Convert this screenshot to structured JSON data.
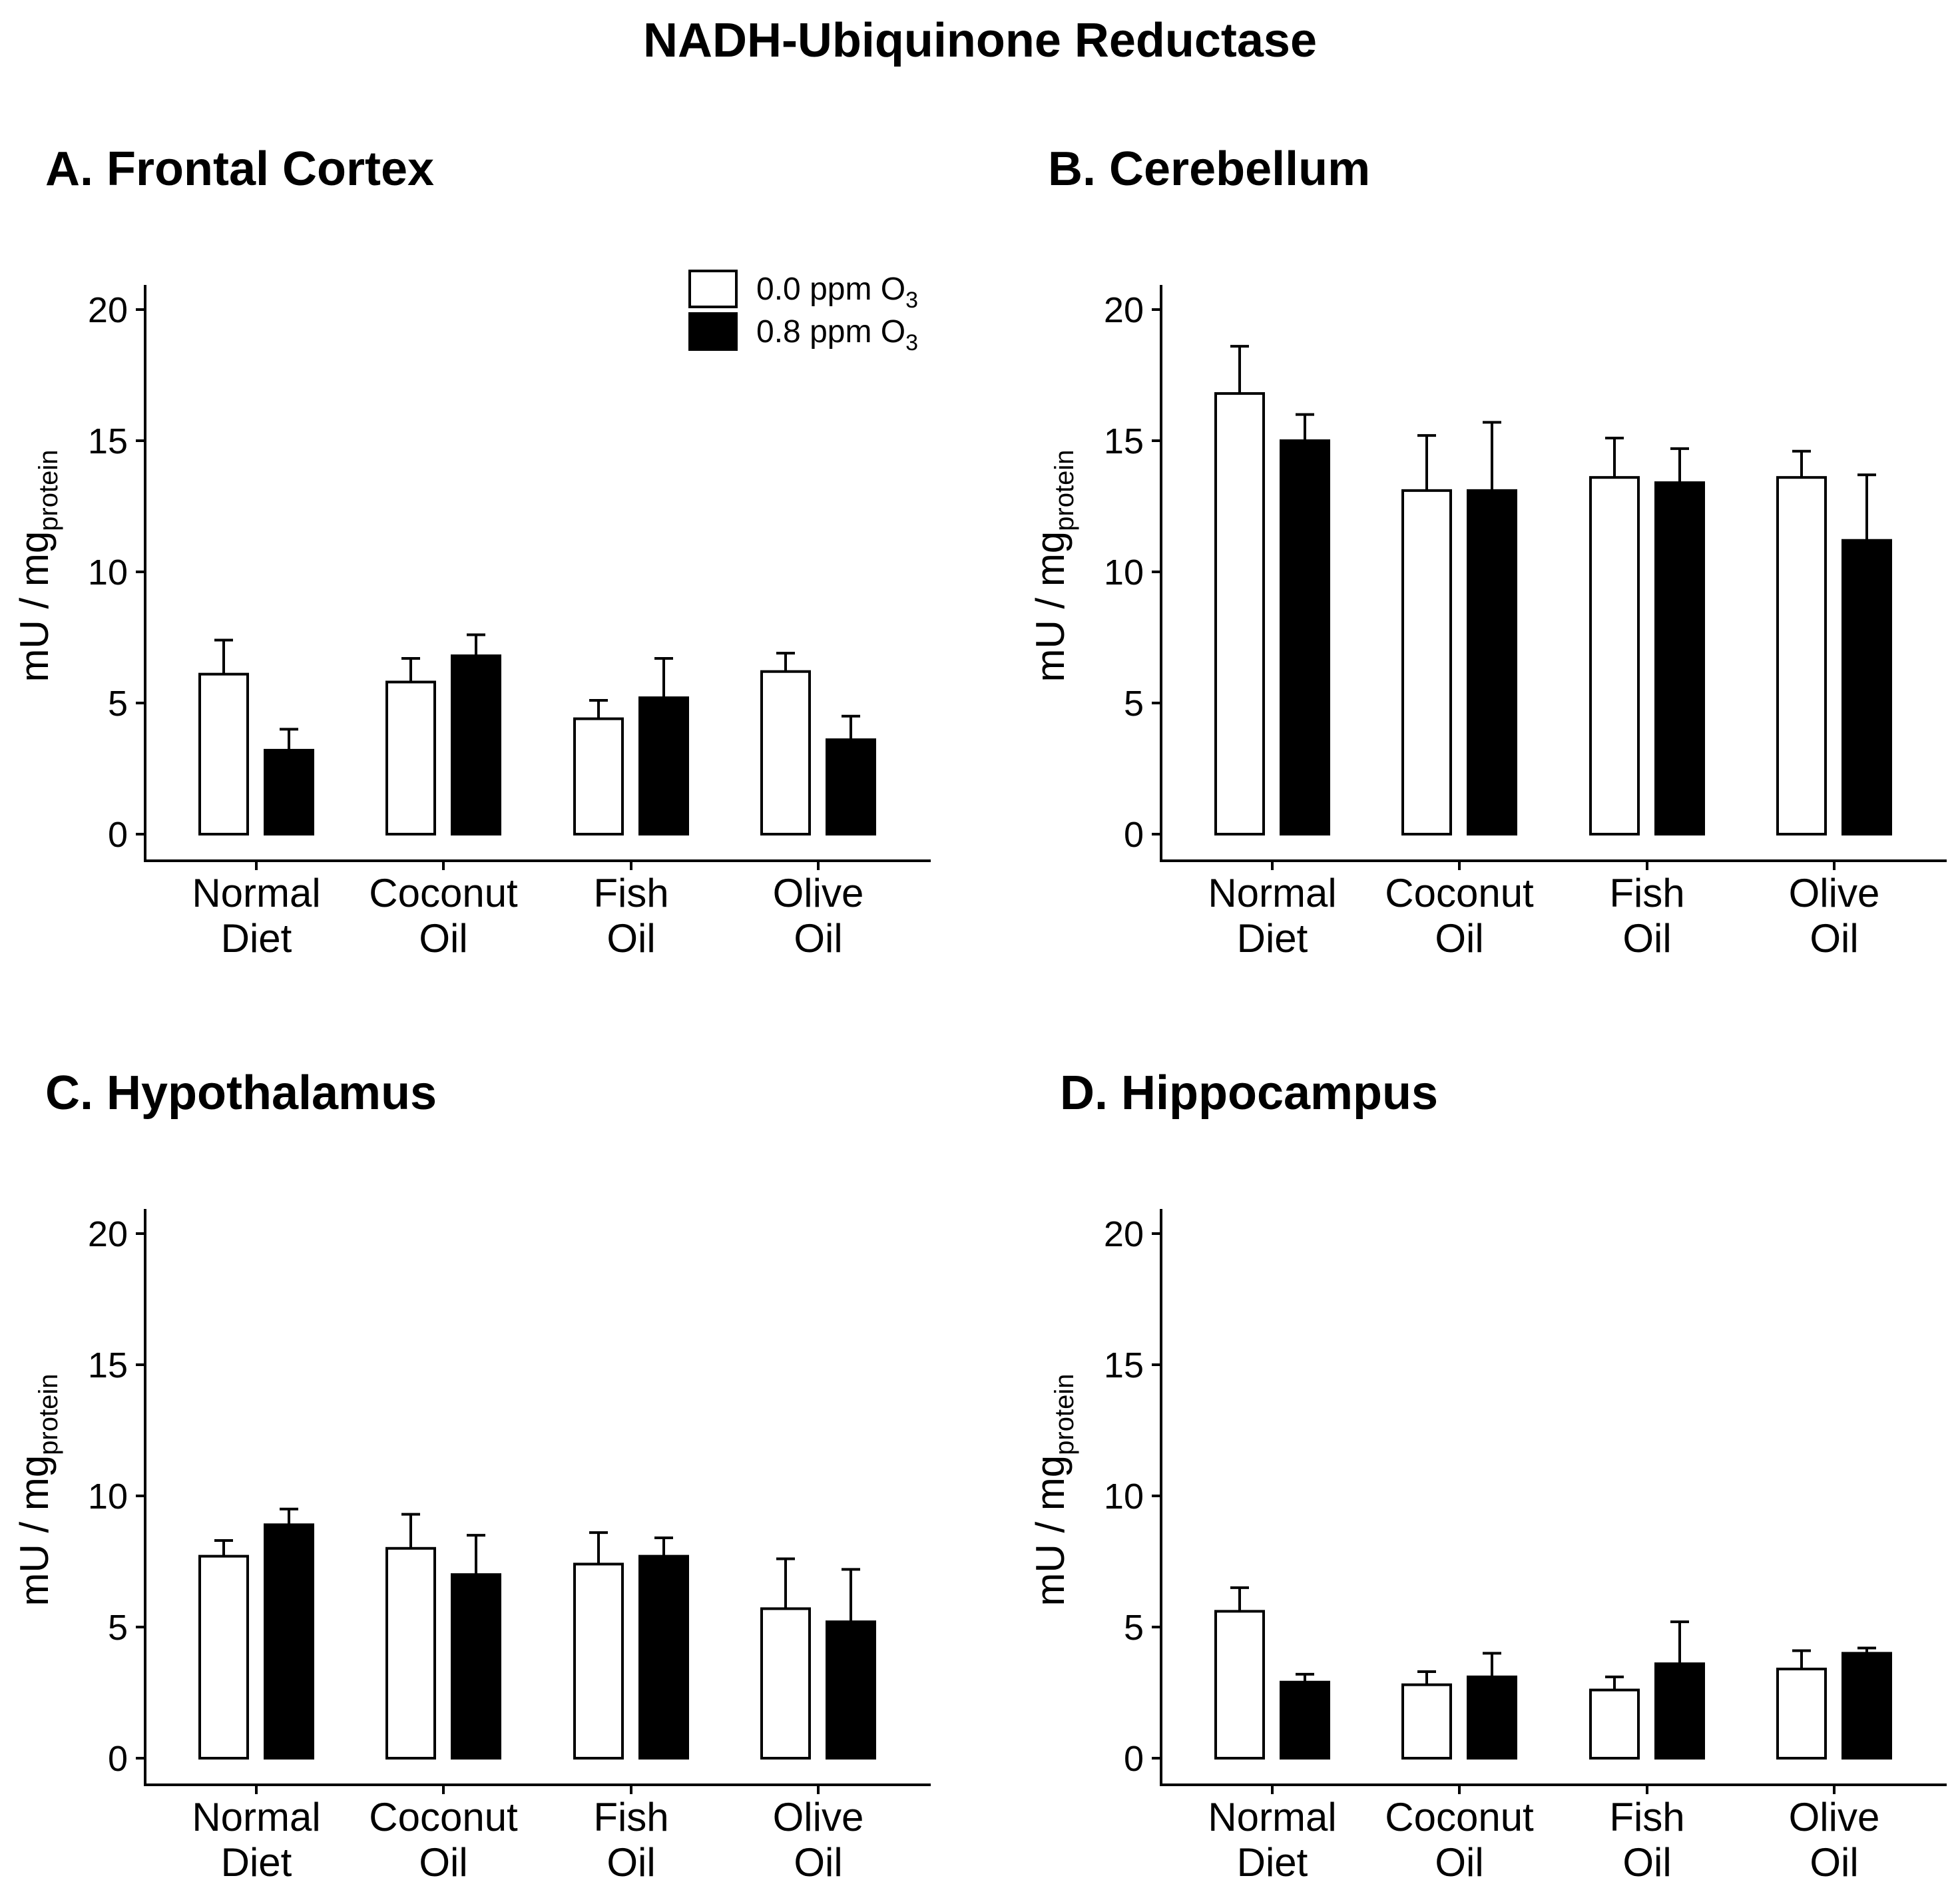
{
  "title": "NADH-Ubiquinone Reductase",
  "legend": {
    "items": [
      {
        "name": "0.0 ppm O",
        "sub": "3",
        "fill": "#ffffff"
      },
      {
        "name": "0.8 ppm O",
        "sub": "3",
        "fill": "#000000"
      }
    ]
  },
  "colors": {
    "control": "#ffffff",
    "ozone": "#000000",
    "stroke": "#000000"
  },
  "chart_data": [
    {
      "type": "bar",
      "title": "A. Frontal Cortex",
      "ylabel": "mU / mg",
      "ylabel_sub": "protein",
      "ylim": [
        0,
        20
      ],
      "yticks": [
        0,
        5,
        10,
        15,
        20
      ],
      "categories": [
        [
          "Normal",
          "Diet"
        ],
        [
          "Coconut",
          "Oil"
        ],
        [
          "Fish",
          "Oil"
        ],
        [
          "Olive",
          "Oil"
        ]
      ],
      "series": [
        {
          "name": "0.0 ppm O3",
          "values": [
            6.1,
            5.8,
            4.4,
            6.2
          ],
          "errors": [
            1.3,
            0.9,
            0.7,
            0.7
          ]
        },
        {
          "name": "0.8 ppm O3",
          "values": [
            3.2,
            6.8,
            5.2,
            3.6
          ],
          "errors": [
            0.8,
            0.8,
            1.5,
            0.9
          ]
        }
      ],
      "legend": true
    },
    {
      "type": "bar",
      "title": "B. Cerebellum",
      "ylabel": "mU / mg",
      "ylabel_sub": "protein",
      "ylim": [
        0,
        20
      ],
      "yticks": [
        0,
        5,
        10,
        15,
        20
      ],
      "categories": [
        [
          "Normal",
          "Diet"
        ],
        [
          "Coconut",
          "Oil"
        ],
        [
          "Fish",
          "Oil"
        ],
        [
          "Olive",
          "Oil"
        ]
      ],
      "series": [
        {
          "name": "0.0 ppm O3",
          "values": [
            16.8,
            13.1,
            13.6,
            13.6
          ],
          "errors": [
            1.8,
            2.1,
            1.5,
            1.0
          ]
        },
        {
          "name": "0.8 ppm O3",
          "values": [
            15.0,
            13.1,
            13.4,
            11.2
          ],
          "errors": [
            1.0,
            2.6,
            1.3,
            2.5
          ]
        }
      ],
      "legend": false
    },
    {
      "type": "bar",
      "title": "C. Hypothalamus",
      "ylabel": "mU / mg",
      "ylabel_sub": "protein",
      "ylim": [
        0,
        20
      ],
      "yticks": [
        0,
        5,
        10,
        15,
        20
      ],
      "categories": [
        [
          "Normal",
          "Diet"
        ],
        [
          "Coconut",
          "Oil"
        ],
        [
          "Fish",
          "Oil"
        ],
        [
          "Olive",
          "Oil"
        ]
      ],
      "series": [
        {
          "name": "0.0 ppm O3",
          "values": [
            7.7,
            8.0,
            7.4,
            5.7
          ],
          "errors": [
            0.6,
            1.3,
            1.2,
            1.9
          ]
        },
        {
          "name": "0.8 ppm O3",
          "values": [
            8.9,
            7.0,
            7.7,
            5.2
          ],
          "errors": [
            0.6,
            1.5,
            0.7,
            2.0
          ]
        }
      ],
      "legend": false
    },
    {
      "type": "bar",
      "title": "D. Hippocampus",
      "ylabel": "mU / mg",
      "ylabel_sub": "protein",
      "ylim": [
        0,
        20
      ],
      "yticks": [
        0,
        5,
        10,
        15,
        20
      ],
      "categories": [
        [
          "Normal",
          "Diet"
        ],
        [
          "Coconut",
          "Oil"
        ],
        [
          "Fish",
          "Oil"
        ],
        [
          "Olive",
          "Oil"
        ]
      ],
      "series": [
        {
          "name": "0.0 ppm O3",
          "values": [
            5.6,
            2.8,
            2.6,
            3.4
          ],
          "errors": [
            0.9,
            0.5,
            0.5,
            0.7
          ]
        },
        {
          "name": "0.8 ppm O3",
          "values": [
            2.9,
            3.1,
            3.6,
            4.0
          ],
          "errors": [
            0.3,
            0.9,
            1.6,
            0.2
          ]
        }
      ],
      "legend": false
    }
  ]
}
